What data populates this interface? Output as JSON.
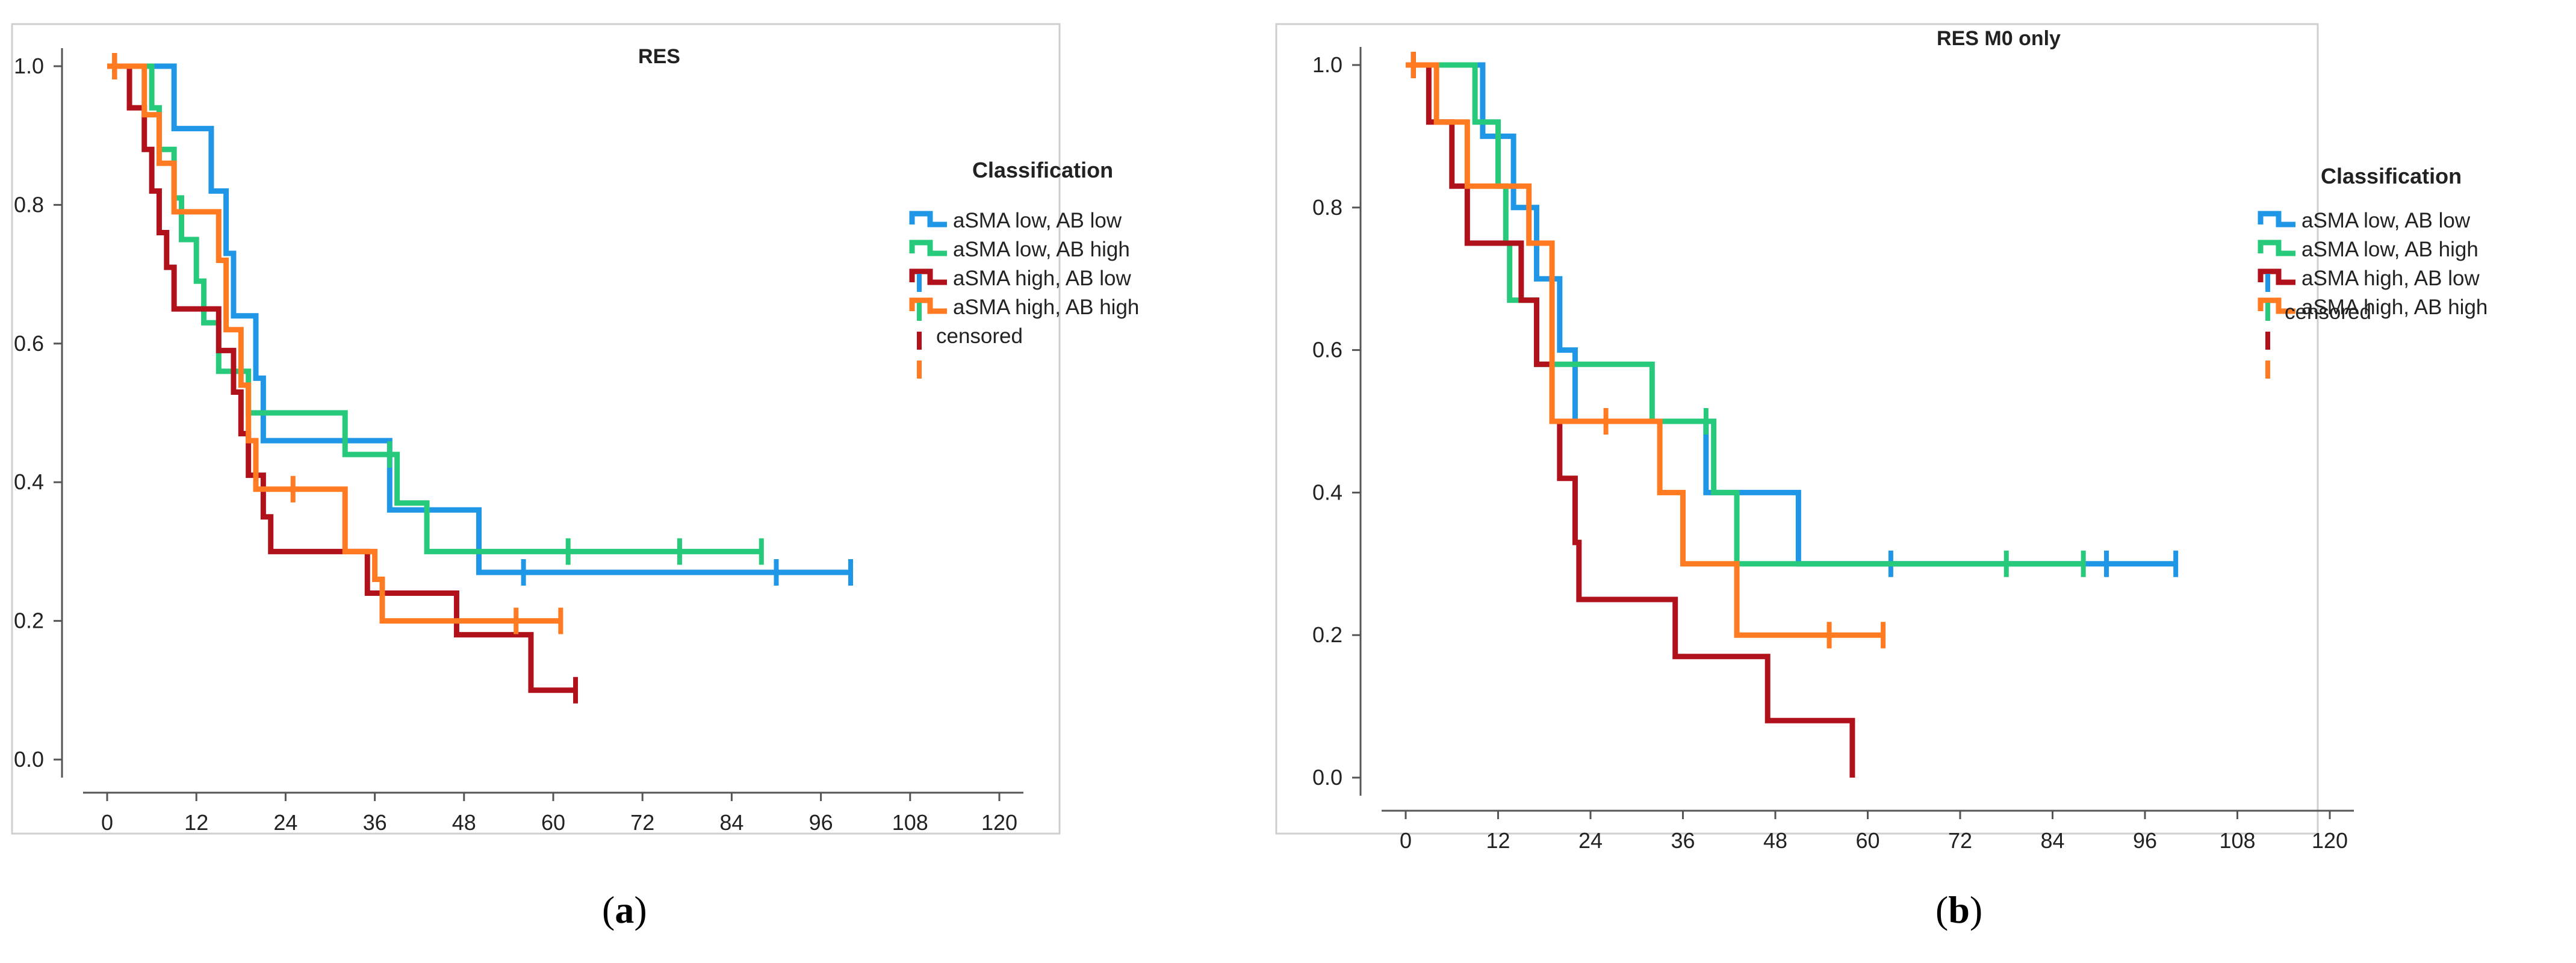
{
  "chart_data": [
    {
      "type": "line",
      "subtype": "kaplan-meier",
      "panel_label": "a",
      "title": "RES",
      "xlabel": "",
      "ylabel": "",
      "xlim": [
        0,
        120
      ],
      "ylim": [
        0,
        1.0
      ],
      "x_ticks": [
        "0",
        "12",
        "24",
        "36",
        "48",
        "60",
        "72",
        "84",
        "96",
        "108",
        "120"
      ],
      "y_ticks": [
        "0.0",
        "0.2",
        "0.4",
        "0.6",
        "0.8",
        "1.0"
      ],
      "grid": false,
      "legend_position": "right",
      "legend_title": "Classification",
      "legend": [
        "aSMA low, AB low",
        "aSMA low, AB high",
        "aSMA high, AB low",
        "aSMA high, AB high"
      ],
      "legend_censored_label": "censored",
      "series": [
        {
          "name": "aSMA low, AB low",
          "color": "#1f96e6",
          "steps": [
            [
              0,
              1.0
            ],
            [
              9,
              0.91
            ],
            [
              14,
              0.82
            ],
            [
              16,
              0.73
            ],
            [
              17,
              0.64
            ],
            [
              20,
              0.55
            ],
            [
              21,
              0.46
            ],
            [
              38,
              0.36
            ],
            [
              50,
              0.27
            ],
            [
              100,
              0.27
            ]
          ],
          "censored": [
            [
              1,
              1.0
            ],
            [
              56,
              0.27
            ],
            [
              90,
              0.27
            ],
            [
              100,
              0.27
            ]
          ]
        },
        {
          "name": "aSMA low, AB high",
          "color": "#27c97b",
          "steps": [
            [
              0,
              1.0
            ],
            [
              6,
              0.94
            ],
            [
              7,
              0.88
            ],
            [
              9,
              0.81
            ],
            [
              10,
              0.75
            ],
            [
              12,
              0.69
            ],
            [
              13,
              0.63
            ],
            [
              15,
              0.56
            ],
            [
              19,
              0.5
            ],
            [
              32,
              0.44
            ],
            [
              39,
              0.37
            ],
            [
              43,
              0.3
            ],
            [
              88,
              0.3
            ]
          ],
          "censored": [
            [
              1,
              1.0
            ],
            [
              38,
              0.44
            ],
            [
              62,
              0.3
            ],
            [
              77,
              0.3
            ],
            [
              88,
              0.3
            ]
          ]
        },
        {
          "name": "aSMA high, AB low",
          "color": "#b0111b",
          "steps": [
            [
              0,
              1.0
            ],
            [
              3,
              0.94
            ],
            [
              5,
              0.88
            ],
            [
              6,
              0.82
            ],
            [
              7,
              0.76
            ],
            [
              8,
              0.71
            ],
            [
              9,
              0.65
            ],
            [
              15,
              0.59
            ],
            [
              17,
              0.53
            ],
            [
              18,
              0.47
            ],
            [
              19,
              0.41
            ],
            [
              21,
              0.35
            ],
            [
              22,
              0.3
            ],
            [
              35,
              0.24
            ],
            [
              47,
              0.18
            ],
            [
              57,
              0.1
            ],
            [
              63,
              0.1
            ]
          ],
          "censored": [
            [
              1,
              1.0
            ],
            [
              63,
              0.1
            ]
          ]
        },
        {
          "name": "aSMA high, AB high",
          "color": "#ff7a21",
          "steps": [
            [
              0,
              1.0
            ],
            [
              5,
              0.93
            ],
            [
              7,
              0.86
            ],
            [
              9,
              0.79
            ],
            [
              15,
              0.72
            ],
            [
              16,
              0.62
            ],
            [
              18,
              0.54
            ],
            [
              19,
              0.46
            ],
            [
              20,
              0.39
            ],
            [
              32,
              0.3
            ],
            [
              36,
              0.26
            ],
            [
              37,
              0.2
            ],
            [
              61,
              0.2
            ]
          ],
          "censored": [
            [
              1,
              1.0
            ],
            [
              25,
              0.39
            ],
            [
              55,
              0.2
            ],
            [
              61,
              0.2
            ]
          ]
        }
      ]
    },
    {
      "type": "line",
      "subtype": "kaplan-meier",
      "panel_label": "b",
      "title": "RES M0 only",
      "xlabel": "",
      "ylabel": "",
      "xlim": [
        0,
        120
      ],
      "ylim": [
        0,
        1.0
      ],
      "x_ticks": [
        "0",
        "12",
        "24",
        "36",
        "48",
        "60",
        "72",
        "84",
        "96",
        "108",
        "120"
      ],
      "y_ticks": [
        "0.0",
        "0.2",
        "0.4",
        "0.6",
        "0.8",
        "1.0"
      ],
      "grid": false,
      "legend_position": "right",
      "legend_title": "Classification",
      "legend": [
        "aSMA low, AB low",
        "aSMA low, AB high",
        "aSMA high, AB low",
        "aSMA high, AB high"
      ],
      "legend_censored_label": "censored",
      "series": [
        {
          "name": "aSMA low, AB low",
          "color": "#1f96e6",
          "steps": [
            [
              0,
              1.0
            ],
            [
              10,
              0.9
            ],
            [
              14,
              0.8
            ],
            [
              17,
              0.7
            ],
            [
              20,
              0.6
            ],
            [
              22,
              0.5
            ],
            [
              39,
              0.4
            ],
            [
              51,
              0.3
            ],
            [
              100,
              0.3
            ]
          ],
          "censored": [
            [
              1,
              1.0
            ],
            [
              63,
              0.3
            ],
            [
              91,
              0.3
            ],
            [
              100,
              0.3
            ]
          ]
        },
        {
          "name": "aSMA low, AB high",
          "color": "#27c97b",
          "steps": [
            [
              0,
              1.0
            ],
            [
              9,
              0.92
            ],
            [
              12,
              0.83
            ],
            [
              13,
              0.75
            ],
            [
              13.5,
              0.67
            ],
            [
              17,
              0.58
            ],
            [
              32,
              0.5
            ],
            [
              40,
              0.4
            ],
            [
              43,
              0.3
            ],
            [
              88,
              0.3
            ]
          ],
          "censored": [
            [
              1,
              1.0
            ],
            [
              39,
              0.5
            ],
            [
              78,
              0.3
            ],
            [
              88,
              0.3
            ]
          ]
        },
        {
          "name": "aSMA high, AB low",
          "color": "#b0111b",
          "steps": [
            [
              0,
              1.0
            ],
            [
              3,
              0.92
            ],
            [
              6,
              0.83
            ],
            [
              8,
              0.75
            ],
            [
              15,
              0.67
            ],
            [
              17,
              0.58
            ],
            [
              19,
              0.5
            ],
            [
              20,
              0.42
            ],
            [
              22,
              0.33
            ],
            [
              22.5,
              0.25
            ],
            [
              35,
              0.17
            ],
            [
              47,
              0.08
            ],
            [
              58,
              0.0
            ]
          ],
          "censored": [
            [
              1,
              1.0
            ]
          ]
        },
        {
          "name": "aSMA high, AB high",
          "color": "#ff7a21",
          "steps": [
            [
              0,
              1.0
            ],
            [
              4,
              0.92
            ],
            [
              8,
              0.83
            ],
            [
              16,
              0.75
            ],
            [
              19,
              0.5
            ],
            [
              33,
              0.4
            ],
            [
              36,
              0.3
            ],
            [
              43,
              0.2
            ],
            [
              62,
              0.2
            ]
          ],
          "censored": [
            [
              1,
              1.0
            ],
            [
              26,
              0.5
            ],
            [
              55,
              0.2
            ],
            [
              62,
              0.2
            ]
          ]
        }
      ]
    }
  ]
}
